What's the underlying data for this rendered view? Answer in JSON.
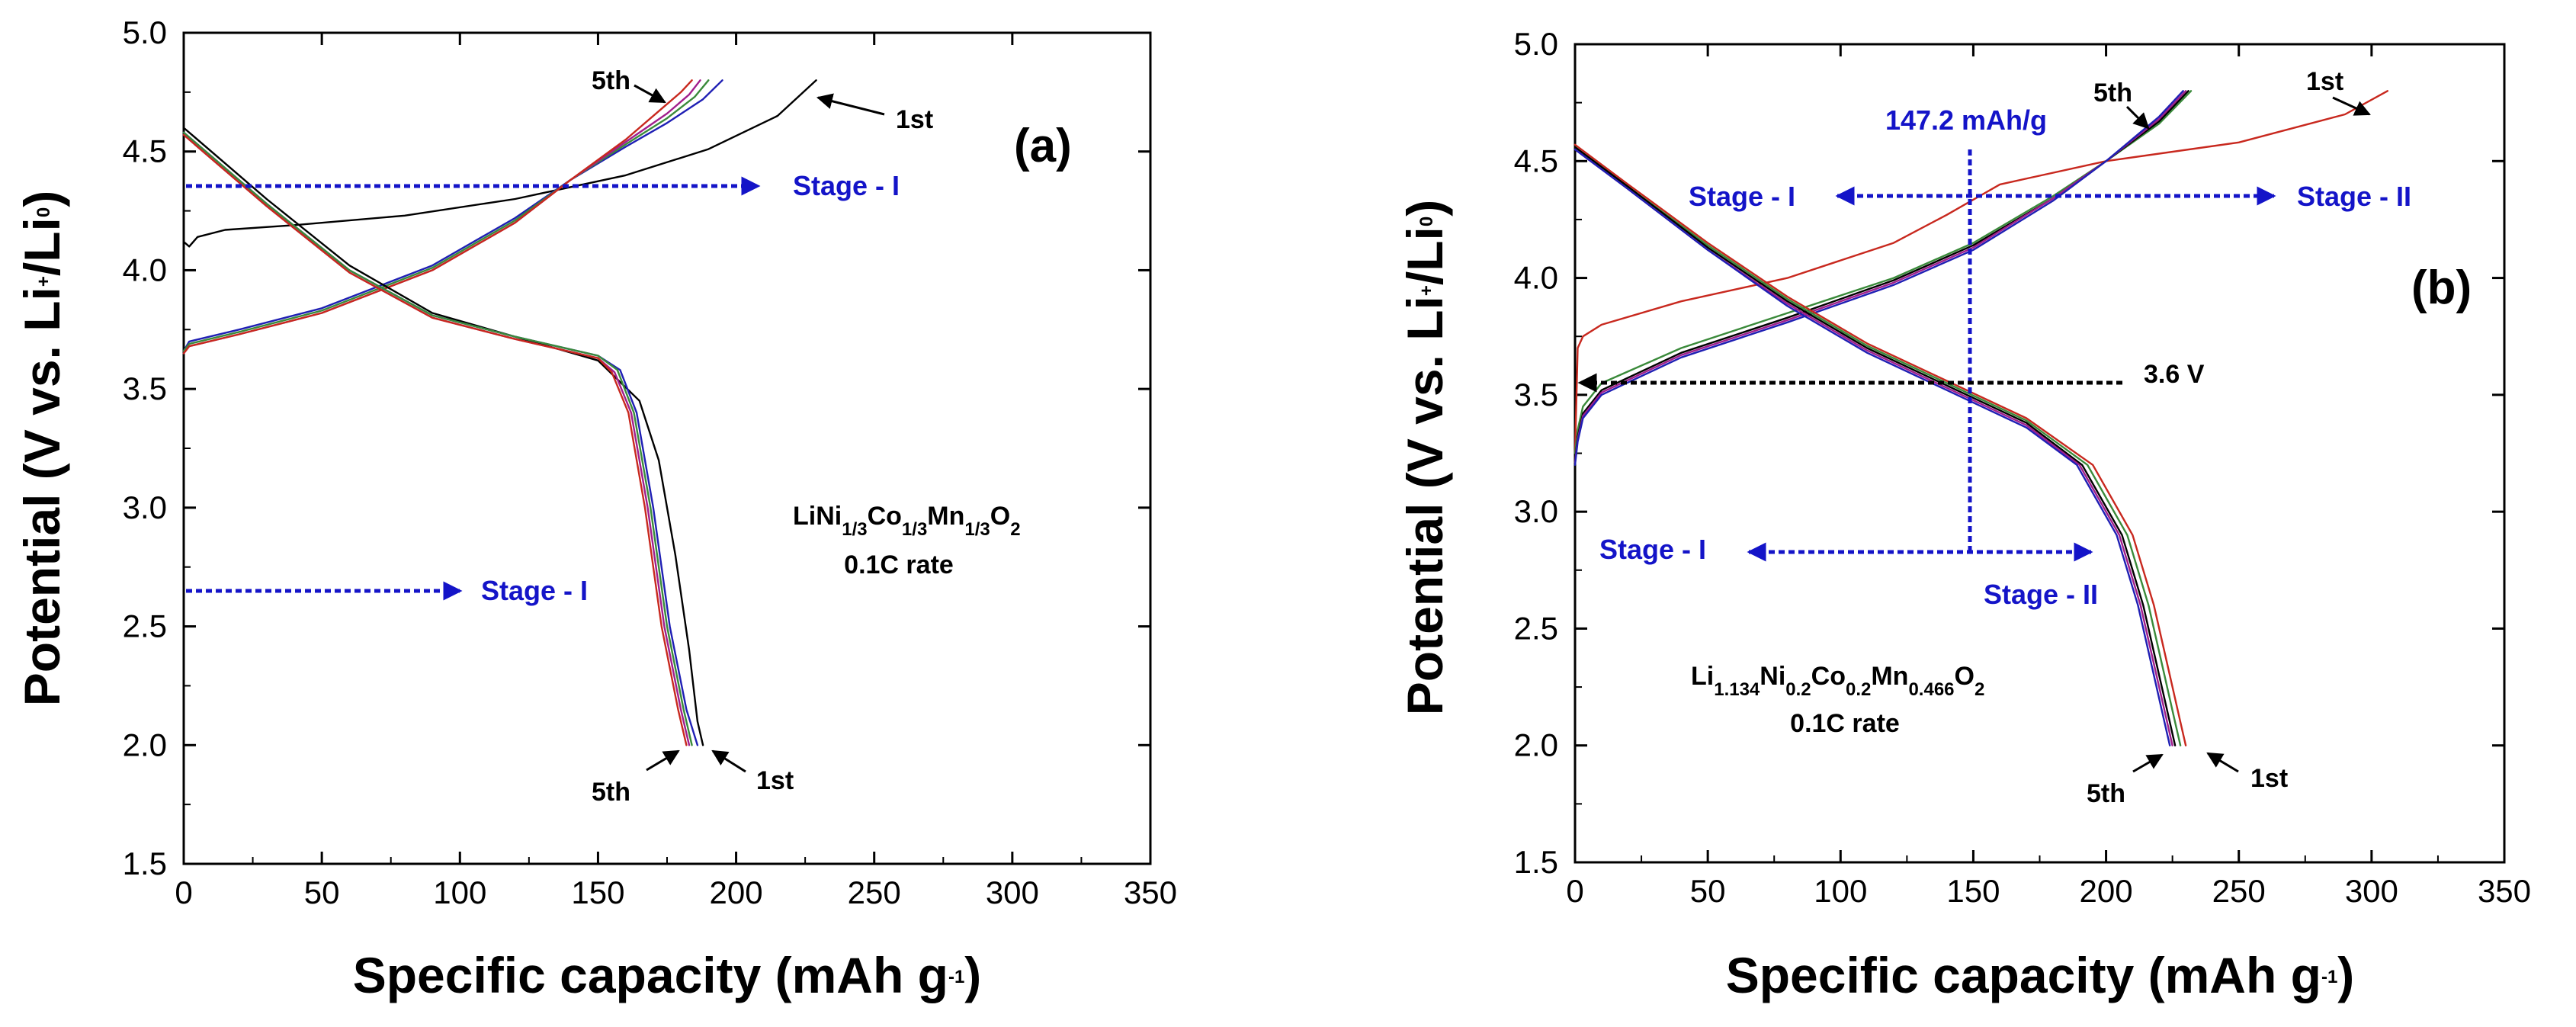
{
  "chart_data": [
    {
      "type": "line",
      "panel": "(a)",
      "xlabel": "Specific capacity (mAh g-1)",
      "xlabel_main": "Specific capacity (mAh g",
      "xlabel_sup": "-1",
      "xlabel_close": ")",
      "ylabel": "Potential (V vs. Li+/Li0)",
      "xlim": [
        0,
        350
      ],
      "ylim": [
        1.5,
        5.0
      ],
      "xticks": [
        "0",
        "50",
        "100",
        "150",
        "200",
        "250",
        "300",
        "350"
      ],
      "yticks": [
        "1.5",
        "2.0",
        "2.5",
        "3.0",
        "3.5",
        "4.0",
        "4.5",
        "5.0"
      ],
      "material_parts": [
        "LiNi",
        "1/3",
        "Co",
        "1/3",
        "Mn",
        "1/3",
        "O",
        "2"
      ],
      "rate": "0.1C rate",
      "labels": {
        "charge_first": "1st",
        "charge_fifth": "5th",
        "discharge_first": "1st",
        "discharge_fifth": "5th"
      },
      "stage_labels": [
        "Stage - I",
        "Stage - I"
      ],
      "stage_arrow_potentials": [
        4.36,
        2.66
      ],
      "series": [
        {
          "name": "1st charge",
          "color": "#000000",
          "x": [
            0,
            2,
            5,
            15,
            40,
            80,
            120,
            160,
            190,
            215,
            229
          ],
          "y": [
            4.12,
            4.1,
            4.14,
            4.17,
            4.19,
            4.23,
            4.3,
            4.4,
            4.51,
            4.65,
            4.8
          ]
        },
        {
          "name": "2nd charge",
          "color": "#1f1fb4",
          "x": [
            0,
            2,
            20,
            50,
            90,
            120,
            140,
            160,
            175,
            188,
            195
          ],
          "y": [
            3.66,
            3.7,
            3.75,
            3.84,
            4.02,
            4.22,
            4.38,
            4.52,
            4.62,
            4.72,
            4.8
          ]
        },
        {
          "name": "3rd charge",
          "color": "#3a8a3a",
          "x": [
            0,
            2,
            20,
            50,
            90,
            120,
            140,
            160,
            175,
            185,
            190
          ],
          "y": [
            3.66,
            3.69,
            3.74,
            3.83,
            4.01,
            4.21,
            4.38,
            4.53,
            4.64,
            4.73,
            4.8
          ]
        },
        {
          "name": "4th charge",
          "color": "#a01e8c",
          "x": [
            0,
            2,
            20,
            50,
            90,
            120,
            140,
            160,
            175,
            183,
            187
          ],
          "y": [
            3.65,
            3.68,
            3.73,
            3.82,
            4.0,
            4.2,
            4.38,
            4.54,
            4.66,
            4.74,
            4.8
          ]
        },
        {
          "name": "5th charge",
          "color": "#c8281e",
          "x": [
            0,
            2,
            20,
            50,
            90,
            120,
            140,
            160,
            172,
            180,
            184
          ],
          "y": [
            3.65,
            3.68,
            3.73,
            3.82,
            4.0,
            4.2,
            4.38,
            4.55,
            4.67,
            4.75,
            4.8
          ]
        },
        {
          "name": "1st discharge",
          "color": "#000000",
          "x": [
            0,
            10,
            30,
            60,
            90,
            120,
            150,
            165,
            172,
            178,
            183,
            186,
            188
          ],
          "y": [
            4.6,
            4.5,
            4.3,
            4.02,
            3.82,
            3.72,
            3.62,
            3.45,
            3.2,
            2.8,
            2.4,
            2.1,
            2.0
          ]
        },
        {
          "name": "2nd discharge",
          "color": "#1f1fb4",
          "x": [
            0,
            10,
            30,
            60,
            90,
            120,
            150,
            158,
            164,
            170,
            176,
            182,
            186
          ],
          "y": [
            4.58,
            4.48,
            4.28,
            4.0,
            3.81,
            3.72,
            3.64,
            3.58,
            3.4,
            3.0,
            2.5,
            2.15,
            2.0
          ]
        },
        {
          "name": "3rd discharge",
          "color": "#3a8a3a",
          "x": [
            0,
            10,
            30,
            60,
            90,
            120,
            150,
            157,
            163,
            169,
            175,
            181,
            184
          ],
          "y": [
            4.58,
            4.48,
            4.28,
            4.0,
            3.81,
            3.72,
            3.64,
            3.58,
            3.4,
            3.0,
            2.5,
            2.15,
            2.0
          ]
        },
        {
          "name": "4th discharge",
          "color": "#a01e8c",
          "x": [
            0,
            10,
            30,
            60,
            90,
            120,
            150,
            156,
            162,
            168,
            174,
            180,
            183
          ],
          "y": [
            4.57,
            4.47,
            4.27,
            3.99,
            3.8,
            3.71,
            3.63,
            3.57,
            3.4,
            3.0,
            2.5,
            2.15,
            2.0
          ]
        },
        {
          "name": "5th discharge",
          "color": "#c8281e",
          "x": [
            0,
            10,
            30,
            60,
            90,
            120,
            150,
            155,
            161,
            167,
            173,
            179,
            182
          ],
          "y": [
            4.57,
            4.47,
            4.27,
            3.99,
            3.8,
            3.71,
            3.63,
            3.57,
            3.4,
            3.0,
            2.5,
            2.15,
            2.0
          ]
        }
      ]
    },
    {
      "type": "line",
      "panel": "(b)",
      "xlabel": "Specific capacity (mAh g-1)",
      "xlabel_main": "Specific capacity (mAh g",
      "xlabel_sup": "-1",
      "xlabel_close": ")",
      "ylabel": "Potential (V vs. Li+/Li0)",
      "xlim": [
        0,
        350
      ],
      "ylim": [
        1.5,
        5.0
      ],
      "xticks": [
        "0",
        "50",
        "100",
        "150",
        "200",
        "250",
        "300",
        "350"
      ],
      "yticks": [
        "1.5",
        "2.0",
        "2.5",
        "3.0",
        "3.5",
        "4.0",
        "4.5",
        "5.0"
      ],
      "material_parts": [
        "Li",
        "1.134",
        "Ni",
        "0.2",
        "Co",
        "0.2",
        "Mn",
        "0.466",
        "O",
        "2"
      ],
      "rate": "0.1C rate",
      "capacity_marker": {
        "label": "147.2 mAh/g",
        "x": 147.2
      },
      "voltage_marker": {
        "label": "3.6 V",
        "y": 3.57
      },
      "labels": {
        "charge_first": "1st",
        "charge_fifth": "5th",
        "discharge_first": "1st",
        "discharge_fifth": "5th"
      },
      "stage_labels": {
        "upper_left": "Stage - I",
        "upper_right": "Stage - II",
        "lower_left": "Stage - I",
        "lower_right": "Stage - II"
      },
      "series": [
        {
          "name": "1st charge",
          "color": "#c8281e",
          "x": [
            0,
            1,
            3,
            10,
            40,
            80,
            120,
            140,
            160,
            200,
            250,
            290,
            306
          ],
          "y": [
            3.25,
            3.7,
            3.75,
            3.8,
            3.9,
            4.0,
            4.15,
            4.27,
            4.4,
            4.5,
            4.58,
            4.7,
            4.8
          ]
        },
        {
          "name": "2nd charge",
          "color": "#3a8a3a",
          "x": [
            0,
            1,
            3,
            10,
            40,
            80,
            120,
            150,
            180,
            200,
            220,
            232
          ],
          "y": [
            3.25,
            3.35,
            3.45,
            3.55,
            3.7,
            3.85,
            4.0,
            4.15,
            4.35,
            4.5,
            4.66,
            4.8
          ]
        },
        {
          "name": "3rd charge",
          "color": "#000000",
          "x": [
            0,
            1,
            3,
            10,
            40,
            80,
            120,
            150,
            180,
            200,
            220,
            231
          ],
          "y": [
            3.22,
            3.32,
            3.42,
            3.52,
            3.68,
            3.83,
            3.99,
            4.14,
            4.34,
            4.5,
            4.67,
            4.8
          ]
        },
        {
          "name": "4th charge",
          "color": "#a01e8c",
          "x": [
            0,
            1,
            3,
            10,
            40,
            80,
            120,
            150,
            180,
            200,
            220,
            230
          ],
          "y": [
            3.21,
            3.31,
            3.41,
            3.51,
            3.67,
            3.82,
            3.98,
            4.13,
            4.34,
            4.5,
            4.68,
            4.8
          ]
        },
        {
          "name": "5th charge",
          "color": "#1f1fb4",
          "x": [
            0,
            1,
            3,
            10,
            40,
            80,
            120,
            150,
            180,
            200,
            220,
            229
          ],
          "y": [
            3.2,
            3.3,
            3.4,
            3.5,
            3.66,
            3.81,
            3.97,
            4.12,
            4.33,
            4.5,
            4.69,
            4.8
          ]
        },
        {
          "name": "1st discharge",
          "color": "#c8281e",
          "x": [
            0,
            20,
            50,
            80,
            110,
            140,
            170,
            195,
            210,
            218,
            224,
            228,
            230
          ],
          "y": [
            4.57,
            4.4,
            4.15,
            3.92,
            3.72,
            3.56,
            3.4,
            3.2,
            2.9,
            2.6,
            2.3,
            2.1,
            2.0
          ]
        },
        {
          "name": "2nd discharge",
          "color": "#3a8a3a",
          "x": [
            0,
            20,
            50,
            80,
            110,
            140,
            170,
            193,
            208,
            216,
            222,
            226,
            228
          ],
          "y": [
            4.56,
            4.39,
            4.14,
            3.91,
            3.71,
            3.55,
            3.39,
            3.2,
            2.9,
            2.6,
            2.3,
            2.1,
            2.0
          ]
        },
        {
          "name": "3rd discharge",
          "color": "#000000",
          "x": [
            0,
            20,
            50,
            80,
            110,
            140,
            170,
            191,
            206,
            214,
            220,
            224,
            226
          ],
          "y": [
            4.56,
            4.39,
            4.13,
            3.9,
            3.7,
            3.54,
            3.38,
            3.2,
            2.9,
            2.6,
            2.3,
            2.1,
            2.0
          ]
        },
        {
          "name": "4th discharge",
          "color": "#a01e8c",
          "x": [
            0,
            20,
            50,
            80,
            110,
            140,
            170,
            190,
            205,
            213,
            219,
            223,
            225
          ],
          "y": [
            4.55,
            4.38,
            4.12,
            3.89,
            3.69,
            3.53,
            3.37,
            3.2,
            2.9,
            2.6,
            2.3,
            2.1,
            2.0
          ]
        },
        {
          "name": "5th discharge",
          "color": "#1f1fb4",
          "x": [
            0,
            20,
            50,
            80,
            110,
            140,
            170,
            189,
            204,
            212,
            218,
            222,
            224
          ],
          "y": [
            4.55,
            4.38,
            4.12,
            3.88,
            3.68,
            3.52,
            3.36,
            3.2,
            2.9,
            2.6,
            2.3,
            2.1,
            2.0
          ]
        }
      ]
    }
  ]
}
